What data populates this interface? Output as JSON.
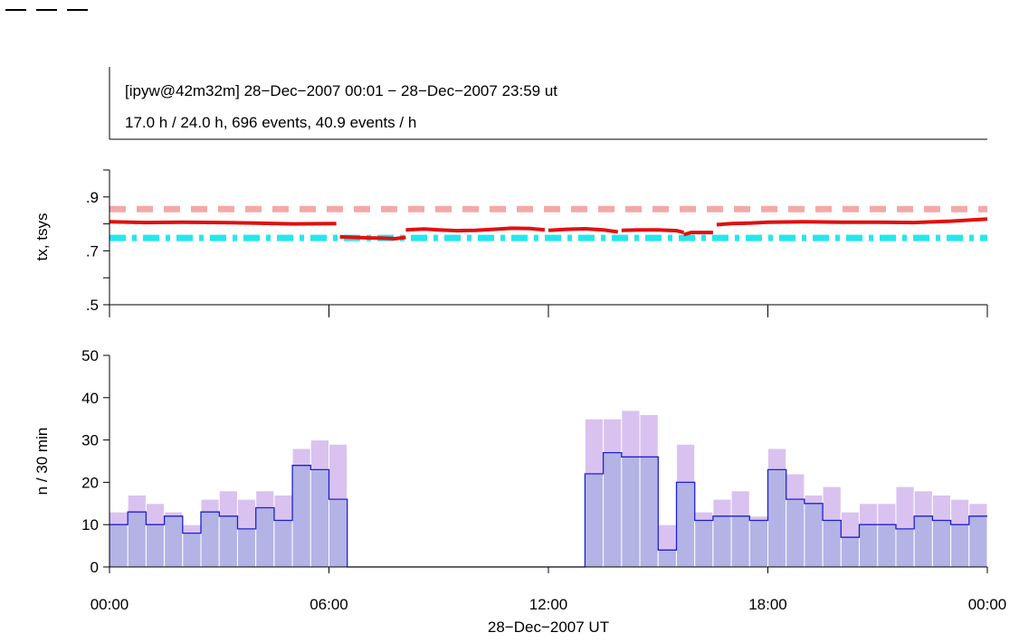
{
  "header": {
    "line1": "[ipyw@42m32m] 28−Dec−2007 00:01 − 28−Dec−2007 23:59 ut",
    "line2": "17.0 h / 24.0 h, 696 events, 40.9 events / h"
  },
  "colors": {
    "tsys": "#f4a8a8",
    "tx": "#e01010",
    "ref": "#22e8ee",
    "hist_total": "#d9c2f0",
    "hist_sel_fill": "#b3b3e6",
    "hist_sel_line": "#1f1fcc"
  },
  "chart_data": [
    {
      "type": "line",
      "ylabel": "tx, tsys",
      "ylim": [
        0.5,
        1.0
      ],
      "yticks": [
        0.5,
        0.7,
        0.9
      ],
      "ytick_labels": [
        ".5",
        ".7",
        ".9"
      ],
      "xlim": [
        0,
        24
      ],
      "series": [
        {
          "key": "tsys",
          "style": "dashed",
          "segments": [
            {
              "x": [
                0,
                24
              ],
              "y": [
                0.855,
                0.855
              ]
            }
          ]
        },
        {
          "key": "ref",
          "style": "dashdot",
          "segments": [
            {
              "x": [
                0,
                24
              ],
              "y": [
                0.748,
                0.748
              ]
            }
          ]
        },
        {
          "key": "tx",
          "style": "solid",
          "segments": [
            {
              "x": [
                0.0,
                1.0,
                2.0,
                3.0,
                4.0,
                5.0,
                6.2
              ],
              "y": [
                0.808,
                0.805,
                0.806,
                0.805,
                0.803,
                0.8,
                0.801
              ]
            },
            {
              "x": [
                6.3,
                6.7,
                7.1,
                7.5,
                7.8,
                8.1
              ],
              "y": [
                0.752,
                0.75,
                0.748,
                0.747,
                0.745,
                0.75
              ]
            },
            {
              "x": [
                8.1,
                8.6,
                9.0,
                9.5,
                10.0,
                10.5,
                11.0,
                11.5,
                11.9
              ],
              "y": [
                0.778,
                0.781,
                0.778,
                0.775,
                0.776,
                0.78,
                0.784,
                0.783,
                0.778
              ]
            },
            {
              "x": [
                12.0,
                12.5,
                13.0,
                13.5,
                13.9
              ],
              "y": [
                0.776,
                0.78,
                0.782,
                0.778,
                0.77
              ]
            },
            {
              "x": [
                14.0,
                14.5,
                15.0,
                15.5,
                15.7
              ],
              "y": [
                0.776,
                0.778,
                0.778,
                0.775,
                0.768
              ]
            },
            {
              "x": [
                15.7,
                15.9,
                16.0,
                16.5
              ],
              "y": [
                0.76,
                0.768,
                0.768,
                0.768
              ]
            },
            {
              "x": [
                16.6,
                17.0,
                17.5,
                18.0,
                19.0,
                20.0,
                21.0,
                22.0,
                23.0,
                24.0
              ],
              "y": [
                0.797,
                0.801,
                0.803,
                0.806,
                0.808,
                0.806,
                0.806,
                0.805,
                0.81,
                0.818
              ]
            }
          ]
        }
      ]
    },
    {
      "type": "bar",
      "ylabel": "n / 30 min",
      "xlabel": "28−Dec−2007 UT",
      "ylim": [
        0,
        50
      ],
      "yticks": [
        0,
        10,
        20,
        30,
        40,
        50
      ],
      "xlim": [
        0,
        24
      ],
      "xticks": [
        0,
        6,
        12,
        18,
        24
      ],
      "xtick_labels": [
        "00:00",
        "06:00",
        "12:00",
        "18:00",
        "00:00"
      ],
      "bin_hours": 0.5,
      "series": [
        {
          "key": "total",
          "values": [
            13,
            17,
            15,
            13,
            10,
            16,
            18,
            16,
            18,
            17,
            28,
            30,
            29,
            0,
            0,
            0,
            0,
            0,
            0,
            0,
            0,
            0,
            0,
            0,
            0,
            0,
            35,
            35,
            37,
            36,
            10,
            29,
            13,
            16,
            18,
            12,
            28,
            22,
            17,
            19,
            13,
            15,
            15,
            19,
            18,
            17,
            16,
            15
          ]
        },
        {
          "key": "selected",
          "values": [
            10,
            13,
            10,
            12,
            8,
            13,
            12,
            9,
            14,
            11,
            24,
            23,
            16,
            0,
            0,
            0,
            0,
            0,
            0,
            0,
            0,
            0,
            0,
            0,
            0,
            0,
            22,
            27,
            26,
            26,
            4,
            20,
            11,
            12,
            12,
            11,
            23,
            16,
            15,
            11,
            7,
            10,
            10,
            9,
            12,
            11,
            10,
            12
          ]
        }
      ]
    }
  ]
}
